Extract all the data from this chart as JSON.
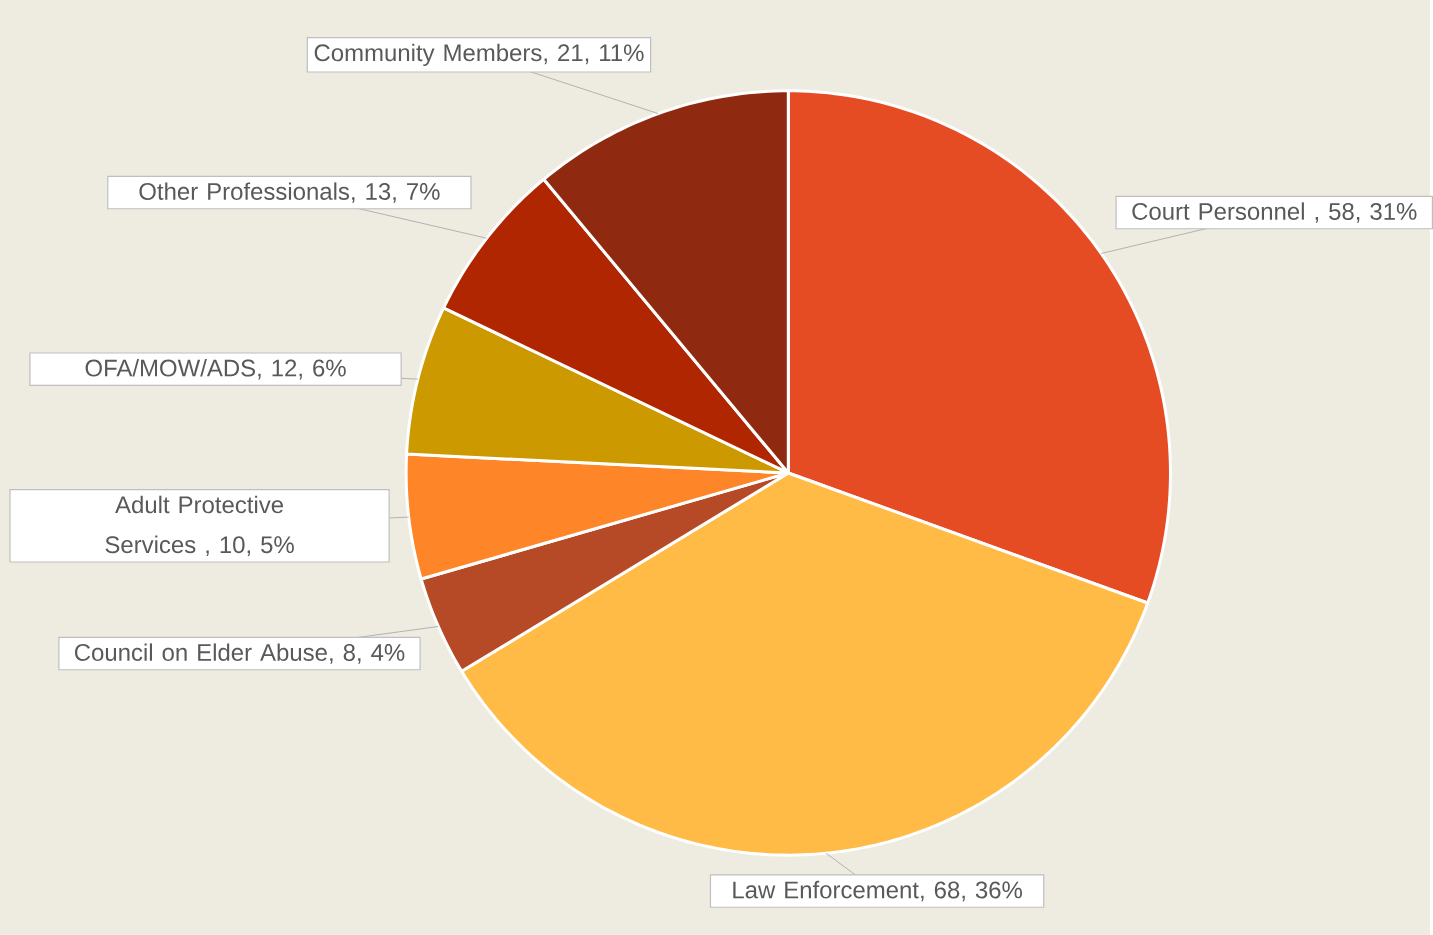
{
  "chart_data": {
    "type": "pie",
    "categories": [
      "Court Personnel ",
      "Law Enforcement",
      "Council on Elder Abuse",
      "Adult Protective Services ",
      "OFA/MOW/ADS",
      "Other Professionals",
      "Community Members"
    ],
    "values": [
      58,
      68,
      8,
      10,
      12,
      13,
      21
    ],
    "colors": [
      "#e64c24",
      "#ffbb46",
      "#b64a26",
      "#fe8528",
      "#cc9900",
      "#b02600",
      "#8f2a11"
    ],
    "value_labels": [
      ", 58, 31%",
      ", 68, 36%",
      ", 8, 4%",
      ", 10, 5%",
      ", 12, 6%",
      ", 13, 7%",
      ", 21, 11%"
    ]
  }
}
